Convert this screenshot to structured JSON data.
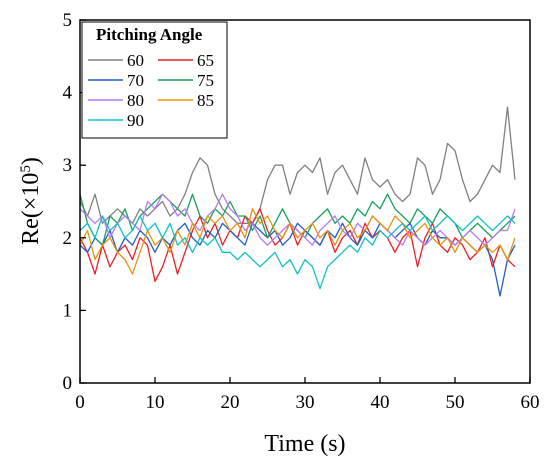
{
  "chart_data": {
    "type": "line",
    "title": "",
    "xlabel": "Time (s)",
    "ylabel_prefix": "Re(×10",
    "ylabel_exponent": "5",
    "ylabel_suffix": ")",
    "xlim": [
      0,
      60
    ],
    "ylim": [
      0,
      5
    ],
    "xticks": [
      "0",
      "10",
      "20",
      "30",
      "40",
      "50",
      "60"
    ],
    "yticks": [
      "0",
      "1",
      "2",
      "3",
      "4",
      "5"
    ],
    "grid": false,
    "legend_placement": "top-left",
    "legend_title": "Pitching Angle",
    "x": [
      0,
      1,
      2,
      3,
      4,
      5,
      6,
      7,
      8,
      9,
      10,
      11,
      12,
      13,
      14,
      15,
      16,
      17,
      18,
      19,
      20,
      21,
      22,
      23,
      24,
      25,
      26,
      27,
      28,
      29,
      30,
      31,
      32,
      33,
      34,
      35,
      36,
      37,
      38,
      39,
      40,
      41,
      42,
      43,
      44,
      45,
      46,
      47,
      48,
      49,
      50,
      51,
      52,
      53,
      54,
      55,
      56,
      57,
      58
    ],
    "series": [
      {
        "name": "60",
        "color": "#808080",
        "values": [
          2.5,
          2.3,
          2.6,
          2.2,
          2.3,
          2.4,
          2.3,
          2.2,
          2.4,
          2.3,
          2.4,
          2.5,
          2.3,
          2.4,
          2.6,
          2.9,
          3.1,
          3.0,
          2.6,
          2.4,
          2.3,
          2.2,
          2.2,
          2.2,
          2.4,
          2.8,
          3.0,
          3.0,
          2.6,
          2.9,
          3.0,
          2.9,
          3.1,
          2.6,
          2.9,
          3.0,
          2.8,
          2.6,
          3.1,
          2.8,
          2.7,
          2.8,
          2.6,
          2.5,
          2.6,
          3.1,
          3.0,
          2.6,
          2.8,
          3.3,
          3.2,
          2.8,
          2.5,
          2.6,
          2.8,
          3.0,
          2.9,
          3.8,
          2.8
        ]
      },
      {
        "name": "65",
        "color": "#ee1f24",
        "values": [
          2.0,
          1.8,
          1.5,
          1.9,
          1.6,
          1.8,
          1.9,
          1.7,
          2.0,
          1.9,
          1.4,
          1.6,
          1.9,
          1.5,
          1.8,
          2.1,
          2.3,
          2.0,
          2.2,
          1.9,
          2.1,
          2.0,
          2.3,
          2.2,
          2.4,
          2.1,
          1.9,
          2.0,
          2.2,
          1.9,
          2.1,
          2.0,
          1.9,
          2.1,
          1.8,
          2.0,
          2.1,
          1.9,
          2.2,
          2.0,
          2.1,
          2.0,
          1.8,
          2.0,
          2.1,
          1.6,
          2.0,
          2.2,
          1.9,
          1.8,
          2.0,
          1.9,
          1.7,
          1.8,
          2.0,
          1.6,
          1.9,
          1.7,
          1.6
        ]
      },
      {
        "name": "70",
        "color": "#1f5fc4",
        "values": [
          1.9,
          1.8,
          2.0,
          1.9,
          2.1,
          1.8,
          2.0,
          1.9,
          2.1,
          2.0,
          1.8,
          2.0,
          1.9,
          2.1,
          2.2,
          2.0,
          1.9,
          2.1,
          2.0,
          2.2,
          2.1,
          2.0,
          1.9,
          2.2,
          2.1,
          2.0,
          2.1,
          1.9,
          2.0,
          2.2,
          2.1,
          2.0,
          1.9,
          2.1,
          2.0,
          2.2,
          2.0,
          1.9,
          2.1,
          2.0,
          2.2,
          2.1,
          2.0,
          2.1,
          2.2,
          2.0,
          1.9,
          2.1,
          2.0,
          2.0,
          1.9,
          2.0,
          1.9,
          1.8,
          1.9,
          1.7,
          1.2,
          1.7,
          1.9
        ]
      },
      {
        "name": "75",
        "color": "#18a05a",
        "values": [
          2.6,
          2.2,
          2.0,
          1.9,
          2.3,
          2.2,
          2.4,
          2.1,
          2.3,
          2.4,
          2.5,
          2.6,
          2.5,
          2.4,
          2.3,
          2.6,
          2.3,
          2.2,
          2.4,
          2.3,
          2.5,
          2.3,
          2.3,
          2.1,
          2.3,
          2.0,
          2.2,
          2.4,
          2.2,
          2.1,
          2.0,
          2.2,
          2.3,
          2.4,
          2.2,
          2.3,
          2.2,
          2.4,
          2.3,
          2.5,
          2.4,
          2.6,
          2.4,
          2.3,
          2.2,
          2.4,
          2.3,
          2.2,
          2.4,
          2.3,
          2.2,
          2.0,
          2.1,
          2.2,
          2.1,
          2.0,
          2.1,
          2.2,
          2.3
        ]
      },
      {
        "name": "80",
        "color": "#b77cf0",
        "values": [
          2.4,
          2.3,
          2.2,
          2.3,
          2.0,
          2.2,
          2.3,
          2.2,
          2.1,
          2.5,
          2.4,
          2.6,
          2.5,
          2.3,
          2.4,
          2.2,
          2.1,
          2.3,
          2.4,
          2.6,
          2.4,
          2.3,
          2.1,
          2.2,
          2.0,
          1.9,
          2.0,
          2.1,
          2.2,
          2.1,
          2.0,
          1.9,
          2.1,
          2.2,
          2.3,
          2.1,
          2.0,
          2.2,
          2.1,
          2.3,
          2.2,
          2.1,
          2.0,
          1.9,
          2.1,
          2.0,
          1.9,
          2.0,
          2.1,
          2.0,
          1.9,
          2.0,
          2.1,
          2.0,
          1.9,
          2.0,
          2.1,
          2.1,
          2.4
        ]
      },
      {
        "name": "85",
        "color": "#e59410",
        "values": [
          1.9,
          2.1,
          1.7,
          1.9,
          2.0,
          1.8,
          1.7,
          1.5,
          1.8,
          2.1,
          1.9,
          2.0,
          1.8,
          2.1,
          1.9,
          2.2,
          2.0,
          2.3,
          2.2,
          2.3,
          2.1,
          2.2,
          2.0,
          2.4,
          2.2,
          2.3,
          2.1,
          2.0,
          2.2,
          2.0,
          2.1,
          2.2,
          2.0,
          2.1,
          1.9,
          2.1,
          2.2,
          2.0,
          2.1,
          2.3,
          2.2,
          2.1,
          2.3,
          2.2,
          2.0,
          2.1,
          2.2,
          2.0,
          1.9,
          2.0,
          1.8,
          2.0,
          1.9,
          1.8,
          1.9,
          1.8,
          1.9,
          1.7,
          2.0
        ]
      },
      {
        "name": "90",
        "color": "#14c0c3",
        "values": [
          2.1,
          2.2,
          2.0,
          2.3,
          2.1,
          2.2,
          2.0,
          2.1,
          2.3,
          2.1,
          2.2,
          2.0,
          2.2,
          1.9,
          2.0,
          1.8,
          2.0,
          1.9,
          2.0,
          1.8,
          1.8,
          1.7,
          1.8,
          1.7,
          1.6,
          1.7,
          1.8,
          1.6,
          1.7,
          1.5,
          1.7,
          1.6,
          1.3,
          1.6,
          1.7,
          1.8,
          1.9,
          1.8,
          2.0,
          1.9,
          2.1,
          2.0,
          2.1,
          2.2,
          2.1,
          2.2,
          2.3,
          2.1,
          2.2,
          2.3,
          2.2,
          2.1,
          2.2,
          2.3,
          2.2,
          2.1,
          2.2,
          2.3,
          2.2
        ]
      }
    ]
  }
}
